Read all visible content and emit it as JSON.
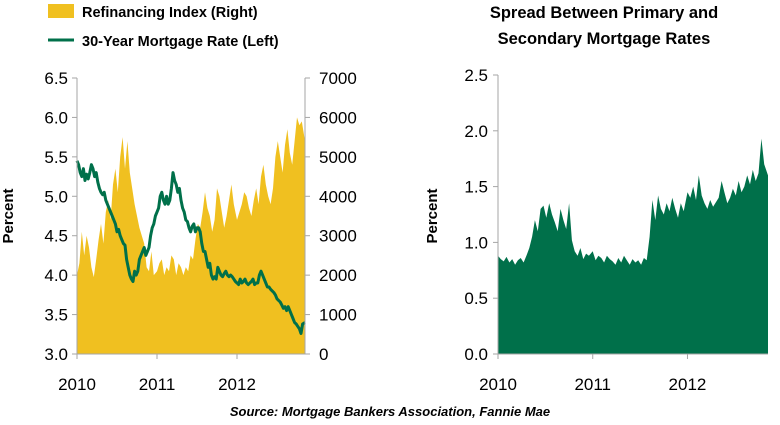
{
  "source": "Source: Mortgage Bankers Association, Fannie Mae",
  "colors": {
    "refi": "#F0C020",
    "rate": "#00704A",
    "spread": "#00704A"
  },
  "chart_data": [
    {
      "type": "area",
      "title": "",
      "legend": [
        {
          "label": "Refinancing Index (Right)",
          "marker": "area",
          "color": "#F0C020"
        },
        {
          "label": "30-Year Mortgage Rate (Left)",
          "marker": "line",
          "color": "#00704A"
        }
      ],
      "ylabel_left": "Percent",
      "ylabel_right": "",
      "y_left": {
        "min": 3.0,
        "max": 6.5,
        "ticks": [
          "3.0",
          "3.5",
          "4.0",
          "4.5",
          "5.0",
          "5.5",
          "6.0",
          "6.5"
        ]
      },
      "y_right": {
        "min": 0,
        "max": 7000,
        "ticks": [
          "0",
          "1000",
          "2000",
          "3000",
          "4000",
          "5000",
          "6000",
          "7000"
        ]
      },
      "x_ticks": [
        "2010",
        "2011",
        "2012"
      ],
      "x_range": [
        2010.0,
        2012.85
      ],
      "grid": false,
      "series": [
        {
          "name": "Refinancing Index (Right)",
          "axis": "right",
          "type": "area",
          "x": [
            2010.0,
            2010.03,
            2010.06,
            2010.09,
            2010.12,
            2010.15,
            2010.18,
            2010.21,
            2010.24,
            2010.27,
            2010.3,
            2010.33,
            2010.36,
            2010.39,
            2010.42,
            2010.45,
            2010.48,
            2010.51,
            2010.54,
            2010.57,
            2010.6,
            2010.63,
            2010.66,
            2010.69,
            2010.72,
            2010.75,
            2010.78,
            2010.81,
            2010.84,
            2010.87,
            2010.9,
            2010.93,
            2010.96,
            2011.0,
            2011.03,
            2011.06,
            2011.09,
            2011.12,
            2011.15,
            2011.18,
            2011.21,
            2011.24,
            2011.27,
            2011.3,
            2011.33,
            2011.36,
            2011.39,
            2011.42,
            2011.45,
            2011.48,
            2011.51,
            2011.54,
            2011.57,
            2011.6,
            2011.63,
            2011.66,
            2011.69,
            2011.72,
            2011.75,
            2011.78,
            2011.81,
            2011.84,
            2011.87,
            2011.9,
            2011.93,
            2011.96,
            2012.0,
            2012.03,
            2012.06,
            2012.09,
            2012.12,
            2012.15,
            2012.18,
            2012.21,
            2012.24,
            2012.27,
            2012.3,
            2012.33,
            2012.36,
            2012.39,
            2012.42,
            2012.45,
            2012.48,
            2012.51,
            2012.54,
            2012.57,
            2012.6,
            2012.63,
            2012.66,
            2012.69,
            2012.72,
            2012.75,
            2012.78,
            2012.81,
            2012.85
          ],
          "values": [
            2000,
            2300,
            3100,
            2500,
            3000,
            2700,
            2200,
            1950,
            2400,
            2900,
            3300,
            2800,
            3600,
            3900,
            3400,
            4300,
            4700,
            4100,
            5000,
            5500,
            4700,
            5400,
            4600,
            4200,
            3800,
            3500,
            3200,
            3000,
            2800,
            2200,
            2100,
            2600,
            2000,
            2100,
            2300,
            2400,
            2000,
            2200,
            2100,
            2500,
            2400,
            2000,
            2300,
            2200,
            2000,
            2200,
            2100,
            2500,
            2400,
            2900,
            3300,
            3200,
            3600,
            4100,
            3700,
            3500,
            3100,
            3400,
            4200,
            4000,
            3600,
            3200,
            3500,
            3900,
            4300,
            3800,
            3400,
            3600,
            3800,
            4100,
            4000,
            3700,
            3500,
            3900,
            4200,
            3800,
            4500,
            4800,
            4300,
            4000,
            3800,
            4200,
            5000,
            5400,
            5000,
            4600,
            5300,
            5700,
            5100,
            4800,
            5400,
            6000,
            5800,
            5900,
            5400
          ]
        },
        {
          "name": "30-Year Mortgage Rate (Left)",
          "axis": "left",
          "type": "line",
          "x": [
            2010.0,
            2010.02,
            2010.04,
            2010.06,
            2010.08,
            2010.1,
            2010.12,
            2010.14,
            2010.16,
            2010.18,
            2010.2,
            2010.22,
            2010.24,
            2010.26,
            2010.28,
            2010.3,
            2010.32,
            2010.34,
            2010.36,
            2010.38,
            2010.4,
            2010.42,
            2010.44,
            2010.46,
            2010.48,
            2010.5,
            2010.52,
            2010.54,
            2010.56,
            2010.58,
            2010.6,
            2010.62,
            2010.64,
            2010.66,
            2010.68,
            2010.7,
            2010.72,
            2010.74,
            2010.76,
            2010.78,
            2010.8,
            2010.82,
            2010.84,
            2010.86,
            2010.88,
            2010.9,
            2010.92,
            2010.94,
            2010.96,
            2010.98,
            2011.0,
            2011.02,
            2011.04,
            2011.06,
            2011.08,
            2011.1,
            2011.12,
            2011.14,
            2011.16,
            2011.18,
            2011.2,
            2011.22,
            2011.24,
            2011.26,
            2011.28,
            2011.3,
            2011.32,
            2011.34,
            2011.36,
            2011.38,
            2011.4,
            2011.42,
            2011.44,
            2011.46,
            2011.48,
            2011.5,
            2011.52,
            2011.54,
            2011.56,
            2011.58,
            2011.6,
            2011.62,
            2011.64,
            2011.66,
            2011.68,
            2011.7,
            2011.72,
            2011.74,
            2011.76,
            2011.78,
            2011.8,
            2011.82,
            2011.84,
            2011.86,
            2011.88,
            2011.9,
            2011.92,
            2011.94,
            2011.96,
            2011.98,
            2012.0,
            2012.02,
            2012.04,
            2012.06,
            2012.08,
            2012.1,
            2012.12,
            2012.14,
            2012.16,
            2012.18,
            2012.2,
            2012.22,
            2012.24,
            2012.26,
            2012.28,
            2012.3,
            2012.32,
            2012.34,
            2012.36,
            2012.38,
            2012.4,
            2012.42,
            2012.44,
            2012.46,
            2012.48,
            2012.5,
            2012.52,
            2012.54,
            2012.56,
            2012.58,
            2012.6,
            2012.62,
            2012.64,
            2012.66,
            2012.68,
            2012.7,
            2012.72,
            2012.74,
            2012.76,
            2012.78,
            2012.8,
            2012.82,
            2012.85
          ],
          "values": [
            5.45,
            5.4,
            5.3,
            5.25,
            5.35,
            5.2,
            5.28,
            5.22,
            5.3,
            5.4,
            5.35,
            5.25,
            5.3,
            5.18,
            5.1,
            5.05,
            5.02,
            5.05,
            4.95,
            4.9,
            4.85,
            4.8,
            4.75,
            4.7,
            4.65,
            4.55,
            4.58,
            4.5,
            4.45,
            4.4,
            4.38,
            4.2,
            4.1,
            4.0,
            3.95,
            3.92,
            4.05,
            4.0,
            4.05,
            4.2,
            4.25,
            4.3,
            4.35,
            4.25,
            4.3,
            4.35,
            4.5,
            4.6,
            4.65,
            4.75,
            4.8,
            4.85,
            5.0,
            5.05,
            4.95,
            4.9,
            5.0,
            4.9,
            4.95,
            5.1,
            5.3,
            5.2,
            5.15,
            5.05,
            5.1,
            4.95,
            4.85,
            4.8,
            4.7,
            4.68,
            4.6,
            4.55,
            4.62,
            4.65,
            4.55,
            4.6,
            4.6,
            4.55,
            4.4,
            4.3,
            4.3,
            4.2,
            4.1,
            4.15,
            4.0,
            3.95,
            3.98,
            3.95,
            4.1,
            4.05,
            4.0,
            3.98,
            4.02,
            4.05,
            4.0,
            3.98,
            4.0,
            3.98,
            3.95,
            3.92,
            3.9,
            3.88,
            3.95,
            3.9,
            3.92,
            3.95,
            3.9,
            3.88,
            3.9,
            3.92,
            3.95,
            3.88,
            3.9,
            3.9,
            4.0,
            4.05,
            4.0,
            3.95,
            3.9,
            3.85,
            3.85,
            3.82,
            3.8,
            3.78,
            3.75,
            3.7,
            3.68,
            3.66,
            3.62,
            3.58,
            3.6,
            3.55,
            3.6,
            3.55,
            3.5,
            3.45,
            3.4,
            3.38,
            3.35,
            3.32,
            3.26,
            3.38,
            3.4
          ]
        }
      ]
    },
    {
      "type": "area",
      "title": "Spread Between Primary and Secondary Mortgage Rates",
      "title_lines": [
        "Spread Between Primary and",
        "Secondary Mortgage Rates"
      ],
      "ylabel": "Percent",
      "y": {
        "min": 0.0,
        "max": 2.5,
        "ticks": [
          "0.0",
          "0.5",
          "1.0",
          "1.5",
          "2.0",
          "2.5"
        ]
      },
      "x_ticks": [
        "2010",
        "2011",
        "2012"
      ],
      "x_range": [
        2010.0,
        2012.85
      ],
      "grid": false,
      "series": [
        {
          "name": "",
          "type": "area",
          "x": [
            2010.0,
            2010.03,
            2010.06,
            2010.09,
            2010.12,
            2010.15,
            2010.18,
            2010.21,
            2010.24,
            2010.27,
            2010.3,
            2010.33,
            2010.36,
            2010.39,
            2010.42,
            2010.45,
            2010.48,
            2010.51,
            2010.54,
            2010.57,
            2010.6,
            2010.63,
            2010.66,
            2010.69,
            2010.72,
            2010.75,
            2010.78,
            2010.81,
            2010.84,
            2010.87,
            2010.9,
            2010.93,
            2010.96,
            2011.0,
            2011.03,
            2011.06,
            2011.09,
            2011.12,
            2011.15,
            2011.18,
            2011.21,
            2011.24,
            2011.27,
            2011.3,
            2011.33,
            2011.36,
            2011.39,
            2011.42,
            2011.45,
            2011.48,
            2011.51,
            2011.54,
            2011.57,
            2011.6,
            2011.63,
            2011.66,
            2011.69,
            2011.72,
            2011.75,
            2011.78,
            2011.81,
            2011.84,
            2011.87,
            2011.9,
            2011.93,
            2011.96,
            2012.0,
            2012.03,
            2012.06,
            2012.09,
            2012.12,
            2012.15,
            2012.18,
            2012.21,
            2012.24,
            2012.27,
            2012.3,
            2012.33,
            2012.36,
            2012.39,
            2012.42,
            2012.45,
            2012.48,
            2012.51,
            2012.54,
            2012.57,
            2012.6,
            2012.63,
            2012.66,
            2012.69,
            2012.72,
            2012.75,
            2012.78,
            2012.81,
            2012.85
          ],
          "values": [
            0.88,
            0.85,
            0.83,
            0.87,
            0.82,
            0.85,
            0.8,
            0.84,
            0.86,
            0.82,
            0.88,
            0.95,
            1.05,
            1.2,
            1.1,
            1.3,
            1.33,
            1.22,
            1.35,
            1.25,
            1.18,
            1.1,
            1.3,
            1.2,
            1.12,
            1.35,
            1.02,
            0.92,
            0.88,
            0.95,
            0.85,
            0.9,
            0.88,
            0.92,
            0.84,
            0.88,
            0.86,
            0.82,
            0.88,
            0.85,
            0.83,
            0.8,
            0.86,
            0.82,
            0.88,
            0.84,
            0.8,
            0.85,
            0.82,
            0.84,
            0.8,
            0.86,
            0.84,
            1.05,
            1.38,
            1.2,
            1.42,
            1.3,
            1.25,
            1.35,
            1.28,
            1.4,
            1.3,
            1.22,
            1.35,
            1.28,
            1.45,
            1.4,
            1.5,
            1.38,
            1.6,
            1.42,
            1.35,
            1.3,
            1.38,
            1.32,
            1.36,
            1.4,
            1.55,
            1.45,
            1.35,
            1.4,
            1.48,
            1.42,
            1.55,
            1.45,
            1.5,
            1.6,
            1.52,
            1.65,
            1.55,
            1.62,
            1.93,
            1.7,
            1.6
          ]
        }
      ]
    }
  ]
}
